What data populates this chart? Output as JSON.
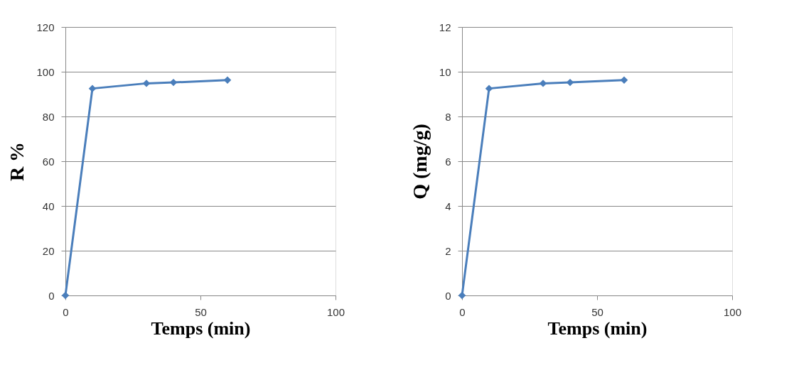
{
  "chart_data": [
    {
      "type": "line",
      "xlabel": "Temps (min)",
      "ylabel": "R %",
      "x": [
        0,
        10,
        30,
        40,
        60
      ],
      "series": [
        {
          "color": "#4a7ebb",
          "values": [
            0,
            92.5,
            94.8,
            95.2,
            96.3
          ]
        }
      ],
      "xlim": [
        0,
        100
      ],
      "xticks": [
        0,
        50,
        100
      ],
      "ylim": [
        0,
        120
      ],
      "yticks": [
        0,
        20,
        40,
        60,
        80,
        100,
        120
      ],
      "grid": "y",
      "marker": "diamond",
      "line_style": "solid"
    },
    {
      "type": "line",
      "xlabel": "Temps (min)",
      "ylabel": "Q (mg/g)",
      "x": [
        0,
        10,
        30,
        40,
        60
      ],
      "series": [
        {
          "color": "#4a7ebb",
          "values": [
            0,
            9.25,
            9.48,
            9.52,
            9.63
          ]
        }
      ],
      "xlim": [
        0,
        100
      ],
      "xticks": [
        0,
        50,
        100
      ],
      "ylim": [
        0,
        12
      ],
      "yticks": [
        0,
        2,
        4,
        6,
        8,
        10,
        12
      ],
      "grid": "y",
      "marker": "diamond",
      "line_style": "solid"
    }
  ]
}
